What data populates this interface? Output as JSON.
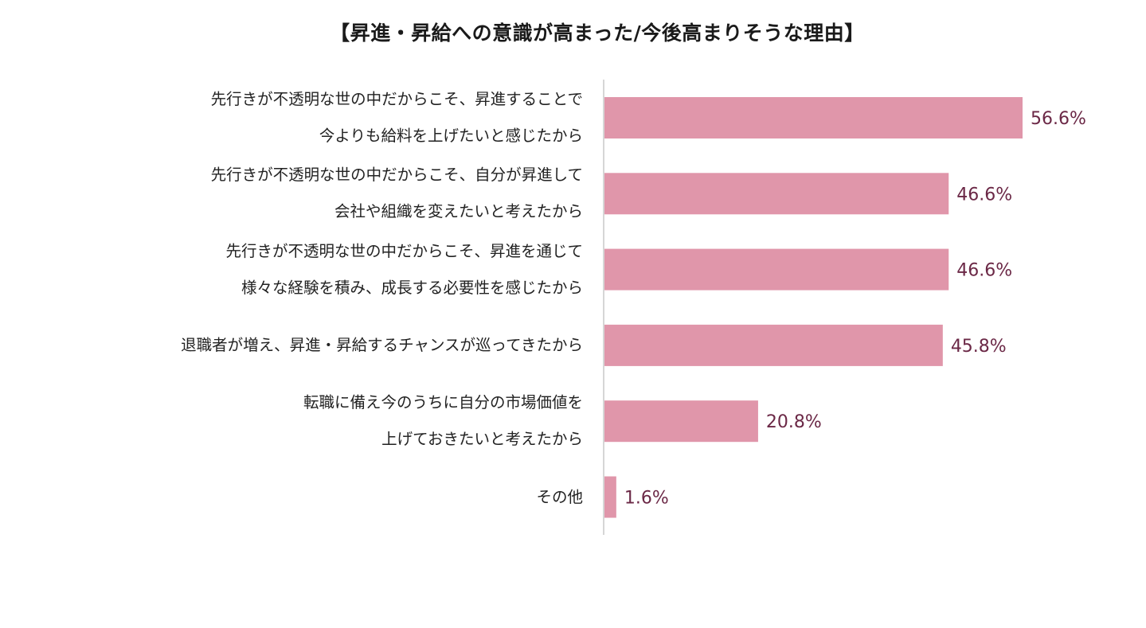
{
  "chart_data": {
    "type": "bar",
    "orientation": "horizontal",
    "title": "【昇進・昇給への意識が高まった/今後高まりそうな理由】",
    "categories": [
      [
        "先行きが不透明な世の中だからこそ、昇進することで",
        "今よりも給料を上げたいと感じたから"
      ],
      [
        "先行きが不透明な世の中だからこそ、自分が昇進して",
        "会社や組織を変えたいと考えたから"
      ],
      [
        "先行きが不透明な世の中だからこそ、昇進を通じて",
        "様々な経験を積み、成長する必要性を感じたから"
      ],
      [
        "退職者が増え、昇進・昇給するチャンスが巡ってきたから"
      ],
      [
        "転職に備え今のうちに自分の市場価値を",
        "上げておきたいと考えたから"
      ],
      [
        "その他"
      ]
    ],
    "values": [
      56.6,
      46.6,
      46.6,
      45.8,
      20.8,
      1.6
    ],
    "value_labels": [
      "56.6%",
      "46.6%",
      "46.6%",
      "45.8%",
      "20.8%",
      "1.6%"
    ],
    "unit": "%",
    "xlim": [
      0,
      60
    ],
    "grid": false,
    "colors": {
      "bar": "#e096aa",
      "value_text": "#6b2846",
      "axis": "#c8c8c8"
    }
  }
}
